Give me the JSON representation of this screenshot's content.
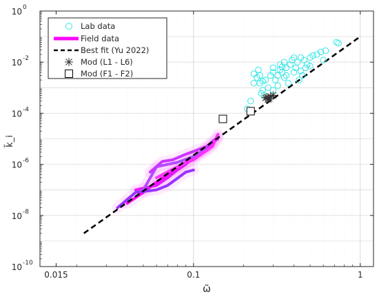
{
  "chart_data": {
    "type": "scatter",
    "title": "",
    "xlabel": "ω̃",
    "ylabel": "k̃_i",
    "xscale": "log",
    "yscale": "log",
    "xlim": [
      0.012,
      1.2
    ],
    "ylim": [
      1e-10,
      1
    ],
    "xticks": [
      {
        "value": 0.015,
        "label": "0.015"
      },
      {
        "value": 0.1,
        "label": "0.1"
      },
      {
        "value": 1,
        "label": "1"
      }
    ],
    "yticks": [
      {
        "value": 1e-10,
        "base": "10",
        "exp": "-10"
      },
      {
        "value": 1e-08,
        "base": "10",
        "exp": "-8"
      },
      {
        "value": 1e-06,
        "base": "10",
        "exp": "-6"
      },
      {
        "value": 0.0001,
        "base": "10",
        "exp": "-4"
      },
      {
        "value": 0.01,
        "base": "10",
        "exp": "-2"
      },
      {
        "value": 1,
        "base": "10",
        "exp": "0"
      }
    ],
    "grid": true,
    "legend_position": "top-left",
    "series": [
      {
        "name": "Lab data",
        "marker": "circle",
        "color": "#33e6e6",
        "points": [
          [
            0.21,
            0.00015
          ],
          [
            0.22,
            0.0003
          ],
          [
            0.23,
            0.0015
          ],
          [
            0.23,
            0.0035
          ],
          [
            0.24,
            0.0025
          ],
          [
            0.245,
            0.005
          ],
          [
            0.25,
            0.003
          ],
          [
            0.25,
            0.0015
          ],
          [
            0.255,
            0.0006
          ],
          [
            0.26,
            0.0008
          ],
          [
            0.265,
            0.0005
          ],
          [
            0.27,
            0.002
          ],
          [
            0.28,
            0.001
          ],
          [
            0.29,
            0.003
          ],
          [
            0.3,
            0.006
          ],
          [
            0.3,
            0.0008
          ],
          [
            0.31,
            0.002
          ],
          [
            0.32,
            0.003
          ],
          [
            0.32,
            0.0012
          ],
          [
            0.33,
            0.005
          ],
          [
            0.33,
            0.008
          ],
          [
            0.34,
            0.004
          ],
          [
            0.35,
            0.01
          ],
          [
            0.35,
            0.0025
          ],
          [
            0.36,
            0.006
          ],
          [
            0.37,
            0.0015
          ],
          [
            0.38,
            0.008
          ],
          [
            0.39,
            0.012
          ],
          [
            0.4,
            0.004
          ],
          [
            0.41,
            0.006
          ],
          [
            0.42,
            0.01
          ],
          [
            0.43,
            0.002
          ],
          [
            0.44,
            0.015
          ],
          [
            0.45,
            0.003
          ],
          [
            0.46,
            0.012
          ],
          [
            0.47,
            0.006
          ],
          [
            0.48,
            0.008
          ],
          [
            0.5,
            0.015
          ],
          [
            0.52,
            0.018
          ],
          [
            0.55,
            0.02
          ],
          [
            0.58,
            0.025
          ],
          [
            0.6,
            0.012
          ],
          [
            0.62,
            0.028
          ],
          [
            0.72,
            0.06
          ],
          [
            0.74,
            0.055
          ],
          [
            0.3,
            0.004
          ],
          [
            0.36,
            0.003
          ],
          [
            0.44,
            0.0045
          ],
          [
            0.26,
            0.0018
          ],
          [
            0.4,
            0.015
          ],
          [
            0.5,
            0.007
          ],
          [
            0.34,
            0.0065
          ]
        ]
      },
      {
        "name": "Field data",
        "marker": "line",
        "color": "#ff00ff",
        "lines": [
          {
            "color": "#ff00ff",
            "points": [
              [
                0.04,
                3e-08
              ],
              [
                0.05,
                8e-08
              ],
              [
                0.06,
                2e-07
              ],
              [
                0.07,
                4e-07
              ],
              [
                0.085,
                9e-07
              ],
              [
                0.1,
                2e-06
              ],
              [
                0.13,
                6e-06
              ]
            ]
          },
          {
            "color": "#e61aff",
            "points": [
              [
                0.045,
                1e-07
              ],
              [
                0.06,
                1.5e-07
              ],
              [
                0.07,
                3e-07
              ],
              [
                0.08,
                6e-07
              ],
              [
                0.09,
                1e-06
              ],
              [
                0.11,
                3e-06
              ],
              [
                0.14,
                1e-05
              ]
            ]
          },
          {
            "color": "#b34dff",
            "points": [
              [
                0.05,
                1e-07
              ],
              [
                0.06,
                8e-07
              ],
              [
                0.07,
                1e-06
              ],
              [
                0.08,
                1.2e-06
              ],
              [
                0.1,
                2e-06
              ],
              [
                0.12,
                4e-06
              ]
            ]
          },
          {
            "color": "#9933ff",
            "points": [
              [
                0.035,
                2e-08
              ],
              [
                0.045,
                8e-08
              ],
              [
                0.06,
                1e-07
              ],
              [
                0.07,
                1.5e-07
              ],
              [
                0.09,
                5e-07
              ],
              [
                0.1,
                6e-07
              ]
            ]
          },
          {
            "color": "#cc33ff",
            "points": [
              [
                0.055,
                5e-07
              ],
              [
                0.065,
                1.3e-06
              ],
              [
                0.075,
                1.5e-06
              ],
              [
                0.09,
                2.5e-06
              ],
              [
                0.12,
                5e-06
              ],
              [
                0.14,
                1.2e-05
              ]
            ]
          },
          {
            "color": "#ff33ff",
            "points": [
              [
                0.06,
                3e-07
              ],
              [
                0.08,
                8e-07
              ],
              [
                0.1,
                1.5e-06
              ],
              [
                0.13,
                5e-06
              ],
              [
                0.14,
                1.5e-05
              ]
            ]
          }
        ]
      },
      {
        "name": "Best fit (Yu 2022)",
        "marker": "dashed-line",
        "color": "#000000",
        "points": [
          [
            0.022,
            2e-09
          ],
          [
            1.0,
            0.1
          ]
        ]
      },
      {
        "name": "Mod (L1 - L6)",
        "marker": "asterisk",
        "color": "#333333",
        "points": [
          [
            0.27,
            0.0004
          ],
          [
            0.28,
            0.00035
          ],
          [
            0.29,
            0.00045
          ],
          [
            0.3,
            0.0005
          ],
          [
            0.285,
            0.00038
          ],
          [
            0.275,
            0.00042
          ]
        ]
      },
      {
        "name": "Mod (F1 - F2)",
        "marker": "square",
        "color": "#000000",
        "points": [
          [
            0.15,
            6e-05
          ],
          [
            0.22,
            0.00012
          ]
        ]
      }
    ]
  }
}
